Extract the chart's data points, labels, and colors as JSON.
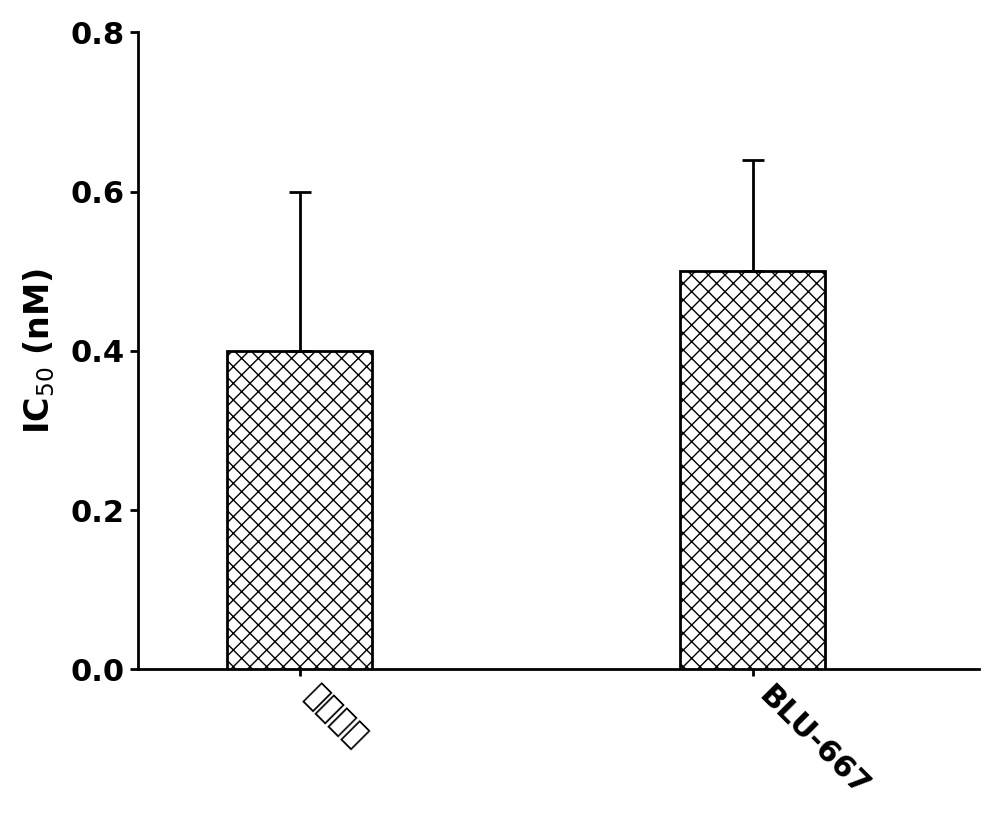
{
  "categories": [
    "本化合物",
    "BLU-667"
  ],
  "values": [
    0.4,
    0.5
  ],
  "error_upper": [
    0.2,
    0.14
  ],
  "ylabel": "IC$_{50}$ (nM)",
  "ylim": [
    0,
    0.8
  ],
  "yticks": [
    0.0,
    0.2,
    0.4,
    0.6,
    0.8
  ],
  "bar_width": 0.45,
  "background_color": "#ffffff",
  "tick_label_fontsize": 22,
  "ylabel_fontsize": 24,
  "label_rotation": -45,
  "figsize": [
    10.0,
    8.23
  ],
  "dpi": 100
}
